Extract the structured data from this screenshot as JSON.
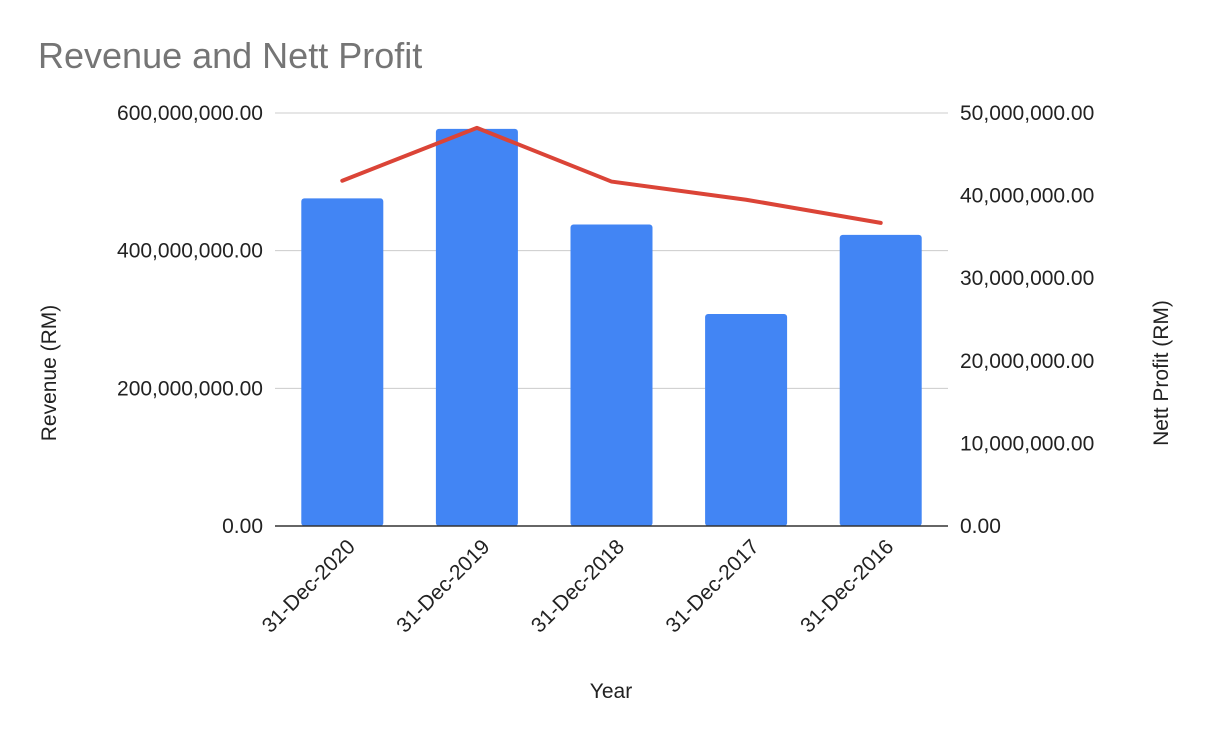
{
  "chart_data": {
    "type": "bar",
    "title": "Revenue and Nett Profit",
    "xlabel": "Year",
    "ylabel": "Revenue (RM)",
    "y2label": "Nett Profit (RM)",
    "categories": [
      "31-Dec-2020",
      "31-Dec-2019",
      "31-Dec-2018",
      "31-Dec-2017",
      "31-Dec-2016"
    ],
    "series": [
      {
        "name": "Revenue",
        "type": "bar",
        "axis": "left",
        "color": "#4285f4",
        "values": [
          476000000,
          577000000,
          438000000,
          308000000,
          423000000
        ]
      },
      {
        "name": "Nett Profit",
        "type": "line",
        "axis": "right",
        "color": "#db4437",
        "values": [
          41800000,
          48200000,
          41700000,
          39500000,
          36700000
        ]
      }
    ],
    "ylim": [
      0,
      600000000
    ],
    "y2lim": [
      0,
      50000000
    ],
    "yticks": [
      "0.00",
      "200,000,000.00",
      "400,000,000.00",
      "600,000,000.00"
    ],
    "y2ticks": [
      "0.00",
      "10,000,000.00",
      "20,000,000.00",
      "30,000,000.00",
      "40,000,000.00",
      "50,000,000.00"
    ],
    "grid": true,
    "legend": "none"
  }
}
